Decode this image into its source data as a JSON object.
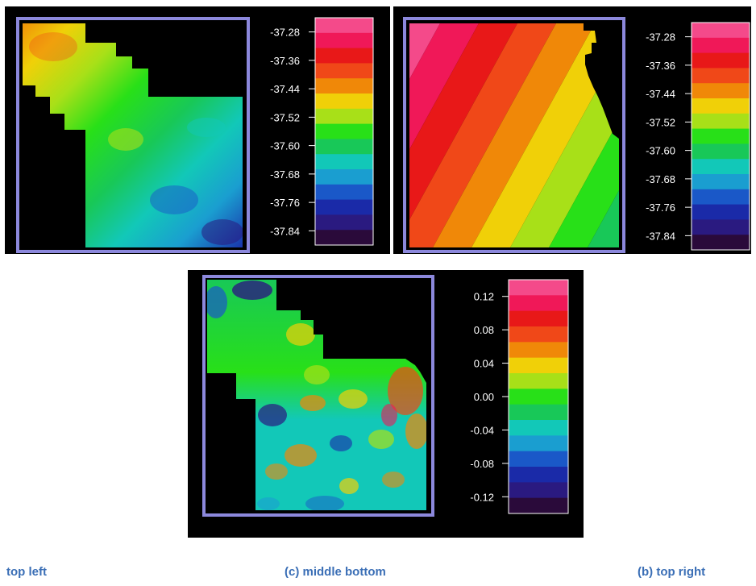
{
  "colors": {
    "palette": [
      "#2a0a3a",
      "#2a1a80",
      "#1a2aa8",
      "#1a58c8",
      "#1a9ed0",
      "#12c8b8",
      "#18c858",
      "#28e018",
      "#a8e018",
      "#f0d008",
      "#f08808",
      "#f04818",
      "#e81818",
      "#f01858",
      "#f44a8a"
    ],
    "frame": "#8c88dc",
    "caption": "#3B6FB6"
  },
  "captions": {
    "a": "top left",
    "c": "(c) middle bottom",
    "b": "(b) top right"
  },
  "chart_data": [
    {
      "type": "heatmap",
      "id": "a",
      "legend_ticks": [
        "-37.28",
        "-37.36",
        "-37.44",
        "-37.52",
        "-37.60",
        "-37.68",
        "-37.76",
        "-37.84"
      ],
      "legend_range": [
        -37.88,
        -37.24
      ],
      "levels": 15
    },
    {
      "type": "heatmap",
      "id": "b",
      "legend_ticks": [
        "-37.28",
        "-37.36",
        "-37.44",
        "-37.52",
        "-37.60",
        "-37.68",
        "-37.76",
        "-37.84"
      ],
      "legend_range": [
        -37.88,
        -37.24
      ],
      "levels": 15
    },
    {
      "type": "heatmap",
      "id": "c",
      "legend_ticks": [
        "0.12",
        "0.08",
        "0.04",
        "0.00",
        "-0.04",
        "-0.08",
        "-0.12"
      ],
      "legend_range": [
        -0.14,
        0.14
      ],
      "levels": 15
    }
  ]
}
